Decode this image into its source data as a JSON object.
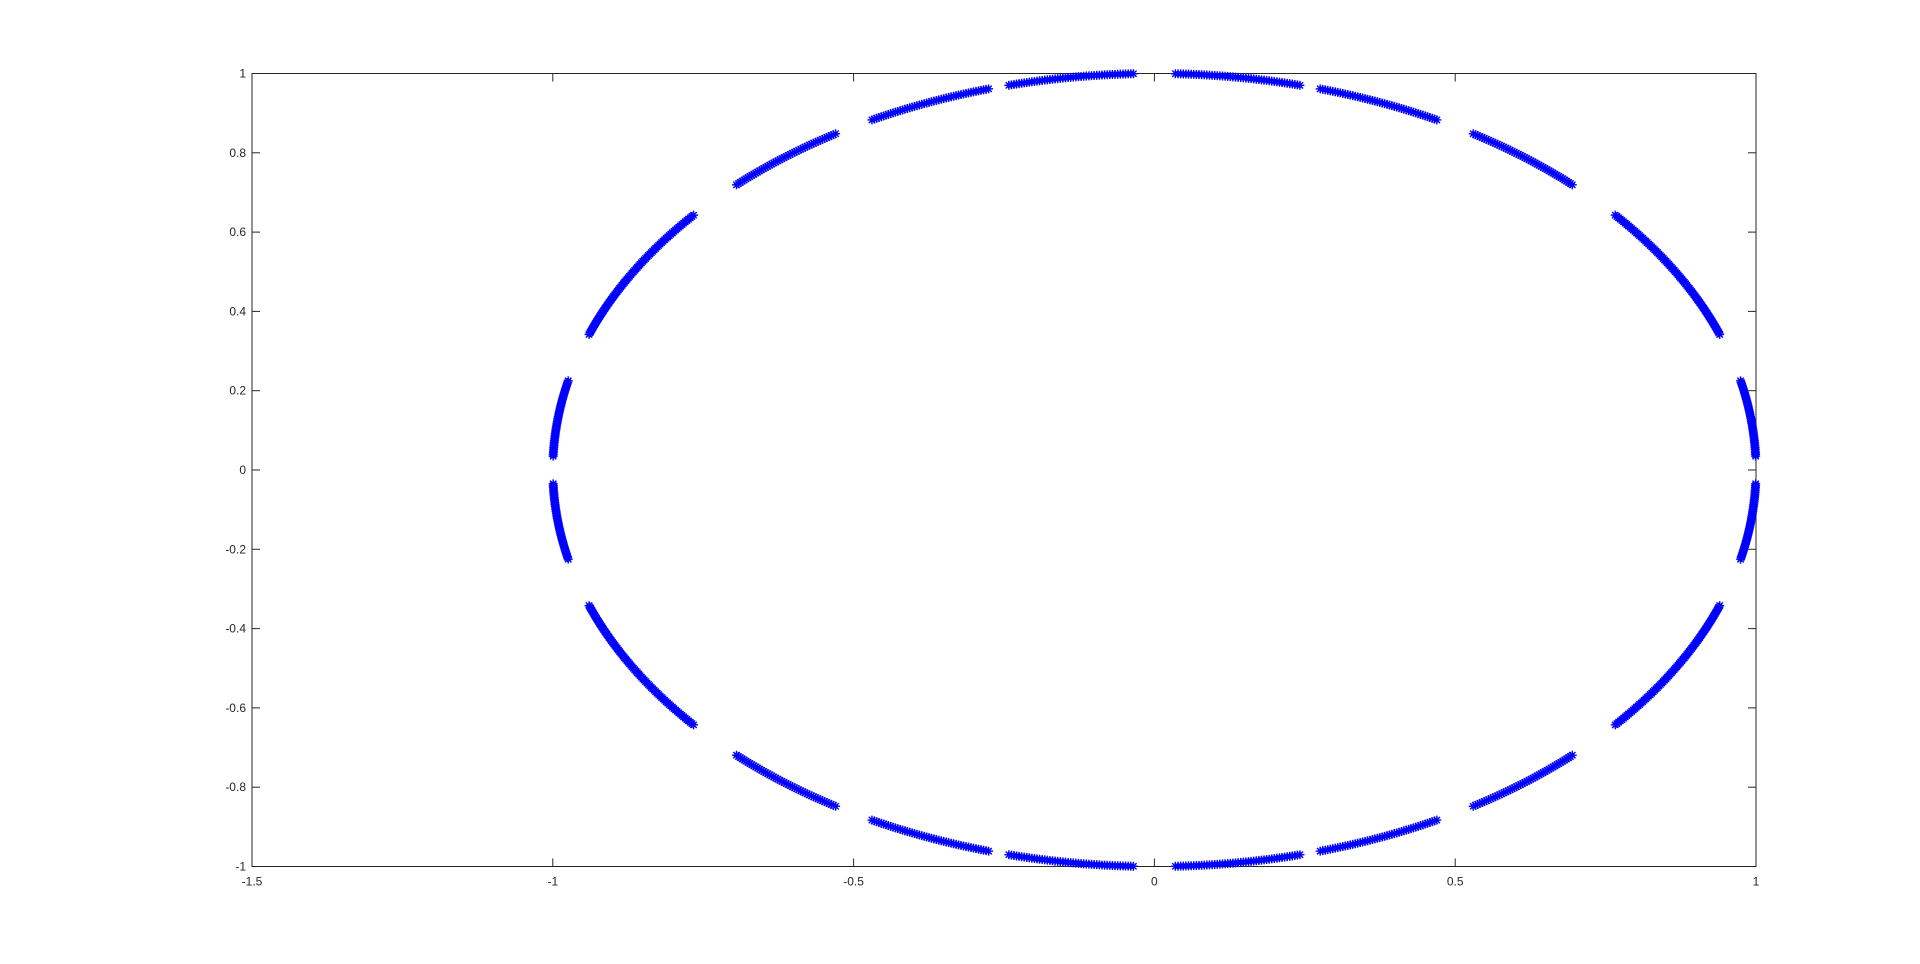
{
  "chart_data": {
    "type": "scatter",
    "title": "",
    "xlabel": "",
    "ylabel": "",
    "xlim": [
      -1.5,
      1
    ],
    "ylim": [
      -1,
      1
    ],
    "grid": false,
    "box": true,
    "marker": "*",
    "marker_color": "#0000ff",
    "x_ticks": [
      -1.5,
      -1,
      -0.5,
      0,
      0.5,
      1
    ],
    "x_tick_labels": [
      "-1.5",
      "-1",
      "-0.5",
      "0",
      "0.5",
      "1"
    ],
    "y_ticks": [
      -1,
      -0.8,
      -0.6,
      -0.4,
      -0.2,
      0,
      0.2,
      0.4,
      0.6,
      0.8,
      1
    ],
    "y_tick_labels": [
      "-1",
      "-0.8",
      "-0.6",
      "-0.4",
      "-0.2",
      "0",
      "0.2",
      "0.4",
      "0.6",
      "0.8",
      "1"
    ],
    "series": [
      {
        "shape": "unit circle x = cos(t), y = sin(t)",
        "arcs_deg": [
          [
            2,
            13
          ],
          [
            20,
            40
          ],
          [
            46,
            58
          ],
          [
            62,
            74
          ],
          [
            76,
            88
          ],
          [
            92,
            104
          ],
          [
            106,
            118
          ],
          [
            122,
            134
          ],
          [
            140,
            160
          ],
          [
            167,
            178
          ],
          [
            182,
            193
          ],
          [
            200,
            220
          ],
          [
            226,
            238
          ],
          [
            242,
            254
          ],
          [
            256,
            268
          ],
          [
            272,
            284
          ],
          [
            286,
            298
          ],
          [
            302,
            314
          ],
          [
            320,
            340
          ],
          [
            347,
            358
          ]
        ],
        "step_deg": 0.25
      }
    ]
  }
}
